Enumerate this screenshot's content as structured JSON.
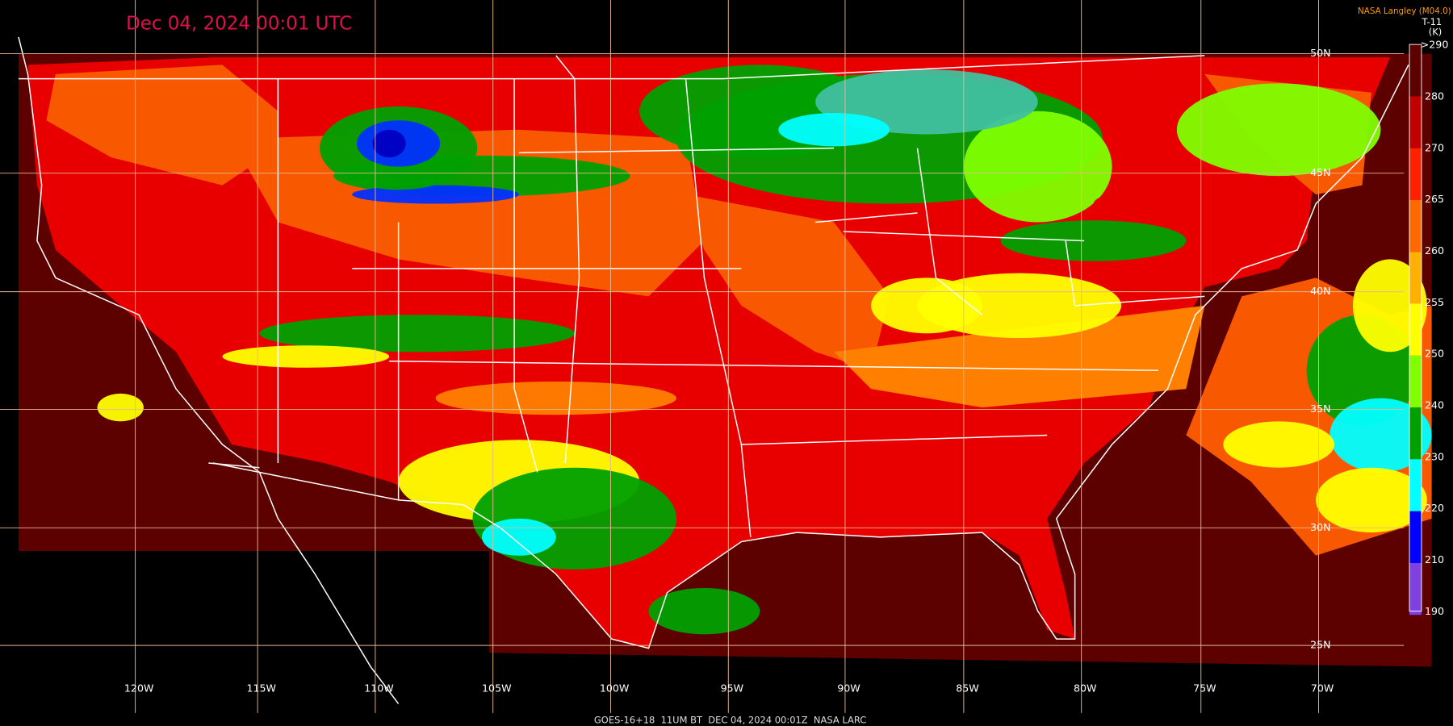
{
  "header": {
    "title": "Dec 04, 2024 00:01 UTC",
    "credit": "NASA Langley (M04.0)"
  },
  "colorbar": {
    "channel": "T-11",
    "unit": "(K)",
    "labels": [
      ">290",
      "280",
      "270",
      "265",
      "260",
      "255",
      "250",
      "240",
      "230",
      "220",
      "210",
      "190"
    ]
  },
  "grid": {
    "longitudes": [
      "120W",
      "115W",
      "110W",
      "105W",
      "100W",
      "95W",
      "90W",
      "85W",
      "80W",
      "75W",
      "70W"
    ],
    "latitudes": [
      "50N",
      "45N",
      "40N",
      "35N",
      "30N",
      "25N"
    ]
  },
  "footer": "GOES-16+18  11UM BT  DEC 04, 2024 00:01Z  NASA LARC"
}
